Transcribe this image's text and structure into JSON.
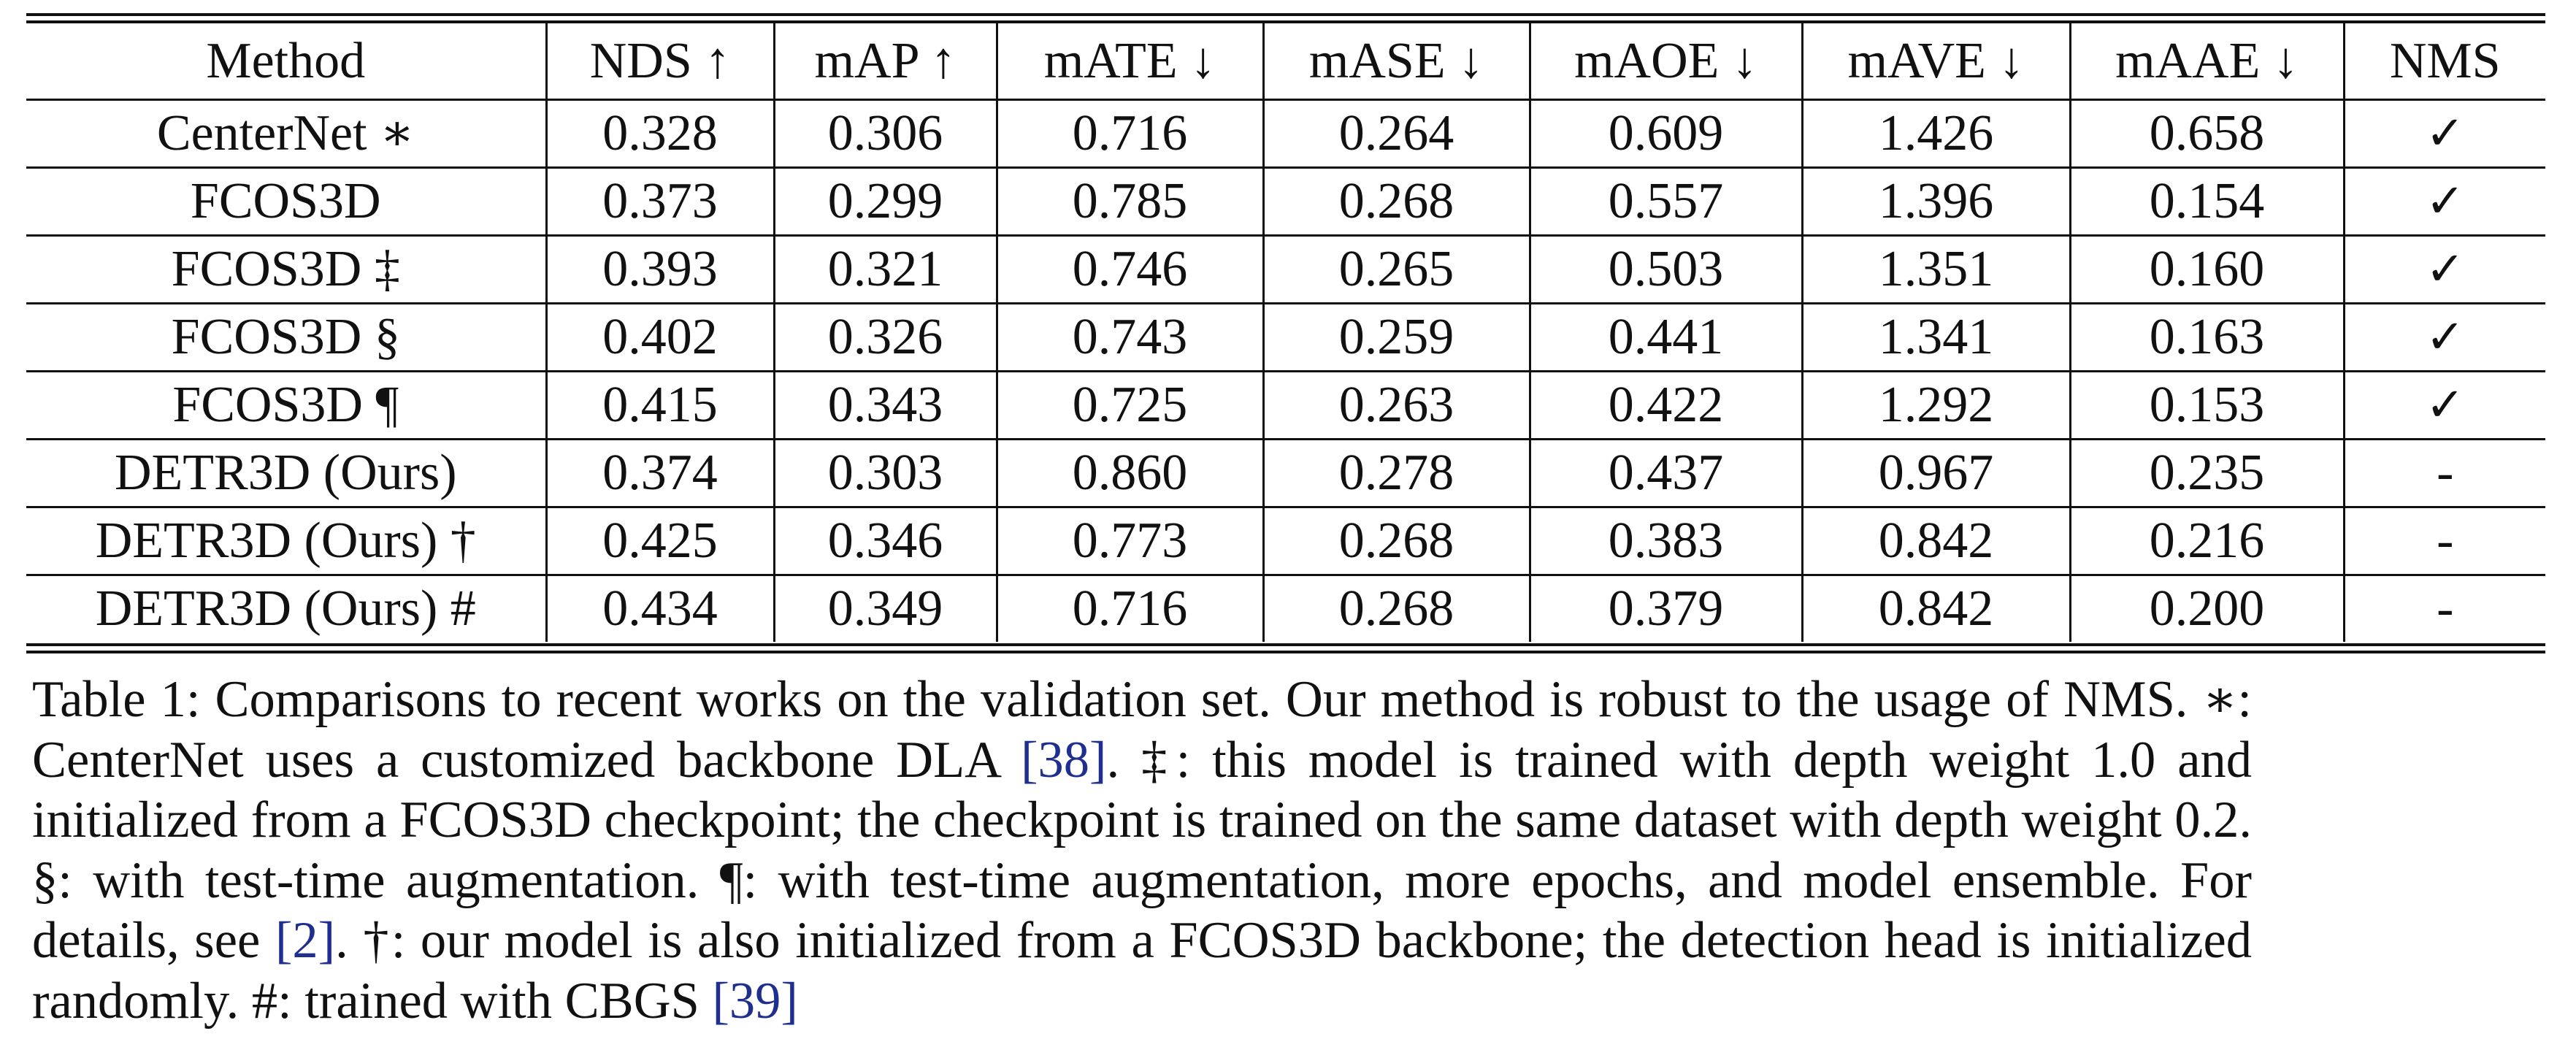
{
  "table": {
    "headers": [
      "Method",
      "NDS ↑",
      "mAP ↑",
      "mATE ↓",
      "mASE ↓",
      "mAOE ↓",
      "mAVE ↓",
      "mAAE ↓",
      "NMS"
    ],
    "rows": [
      [
        "CenterNet ∗",
        "0.328",
        "0.306",
        "0.716",
        "0.264",
        "0.609",
        "1.426",
        "0.658",
        "✓"
      ],
      [
        "FCOS3D",
        "0.373",
        "0.299",
        "0.785",
        "0.268",
        "0.557",
        "1.396",
        "0.154",
        "✓"
      ],
      [
        "FCOS3D ‡",
        "0.393",
        "0.321",
        "0.746",
        "0.265",
        "0.503",
        "1.351",
        "0.160",
        "✓"
      ],
      [
        "FCOS3D §",
        "0.402",
        "0.326",
        "0.743",
        "0.259",
        "0.441",
        "1.341",
        "0.163",
        "✓"
      ],
      [
        "FCOS3D ¶",
        "0.415",
        "0.343",
        "0.725",
        "0.263",
        "0.422",
        "1.292",
        "0.153",
        "✓"
      ],
      [
        "DETR3D (Ours)",
        "0.374",
        "0.303",
        "0.860",
        "0.278",
        "0.437",
        "0.967",
        "0.235",
        "-"
      ],
      [
        "DETR3D (Ours) †",
        "0.425",
        "0.346",
        "0.773",
        "0.268",
        "0.383",
        "0.842",
        "0.216",
        "-"
      ],
      [
        "DETR3D (Ours) #",
        "0.434",
        "0.349",
        "0.716",
        "0.268",
        "0.379",
        "0.842",
        "0.200",
        "-"
      ]
    ]
  },
  "caption": {
    "part1": "Table 1: Comparisons to recent works on the validation set. Our method is robust to the usage of NMS. ∗: CenterNet uses a customized backbone DLA ",
    "cite1": "[38]",
    "part2": ". ‡: this model is trained with depth weight 1.0 and initialized from a FCOS3D checkpoint; the checkpoint is trained on the same dataset with depth weight 0.2. §: with test-time augmentation. ¶: with test-time augmentation, more epochs, and model ensemble. For details, see ",
    "cite2": "[2]",
    "part3": ". †: our model is also initialized from a FCOS3D backbone; the detection head is initialized randomly. #: trained with CBGS ",
    "cite3": "[39]",
    "citation_color": "#1f2f8f"
  }
}
